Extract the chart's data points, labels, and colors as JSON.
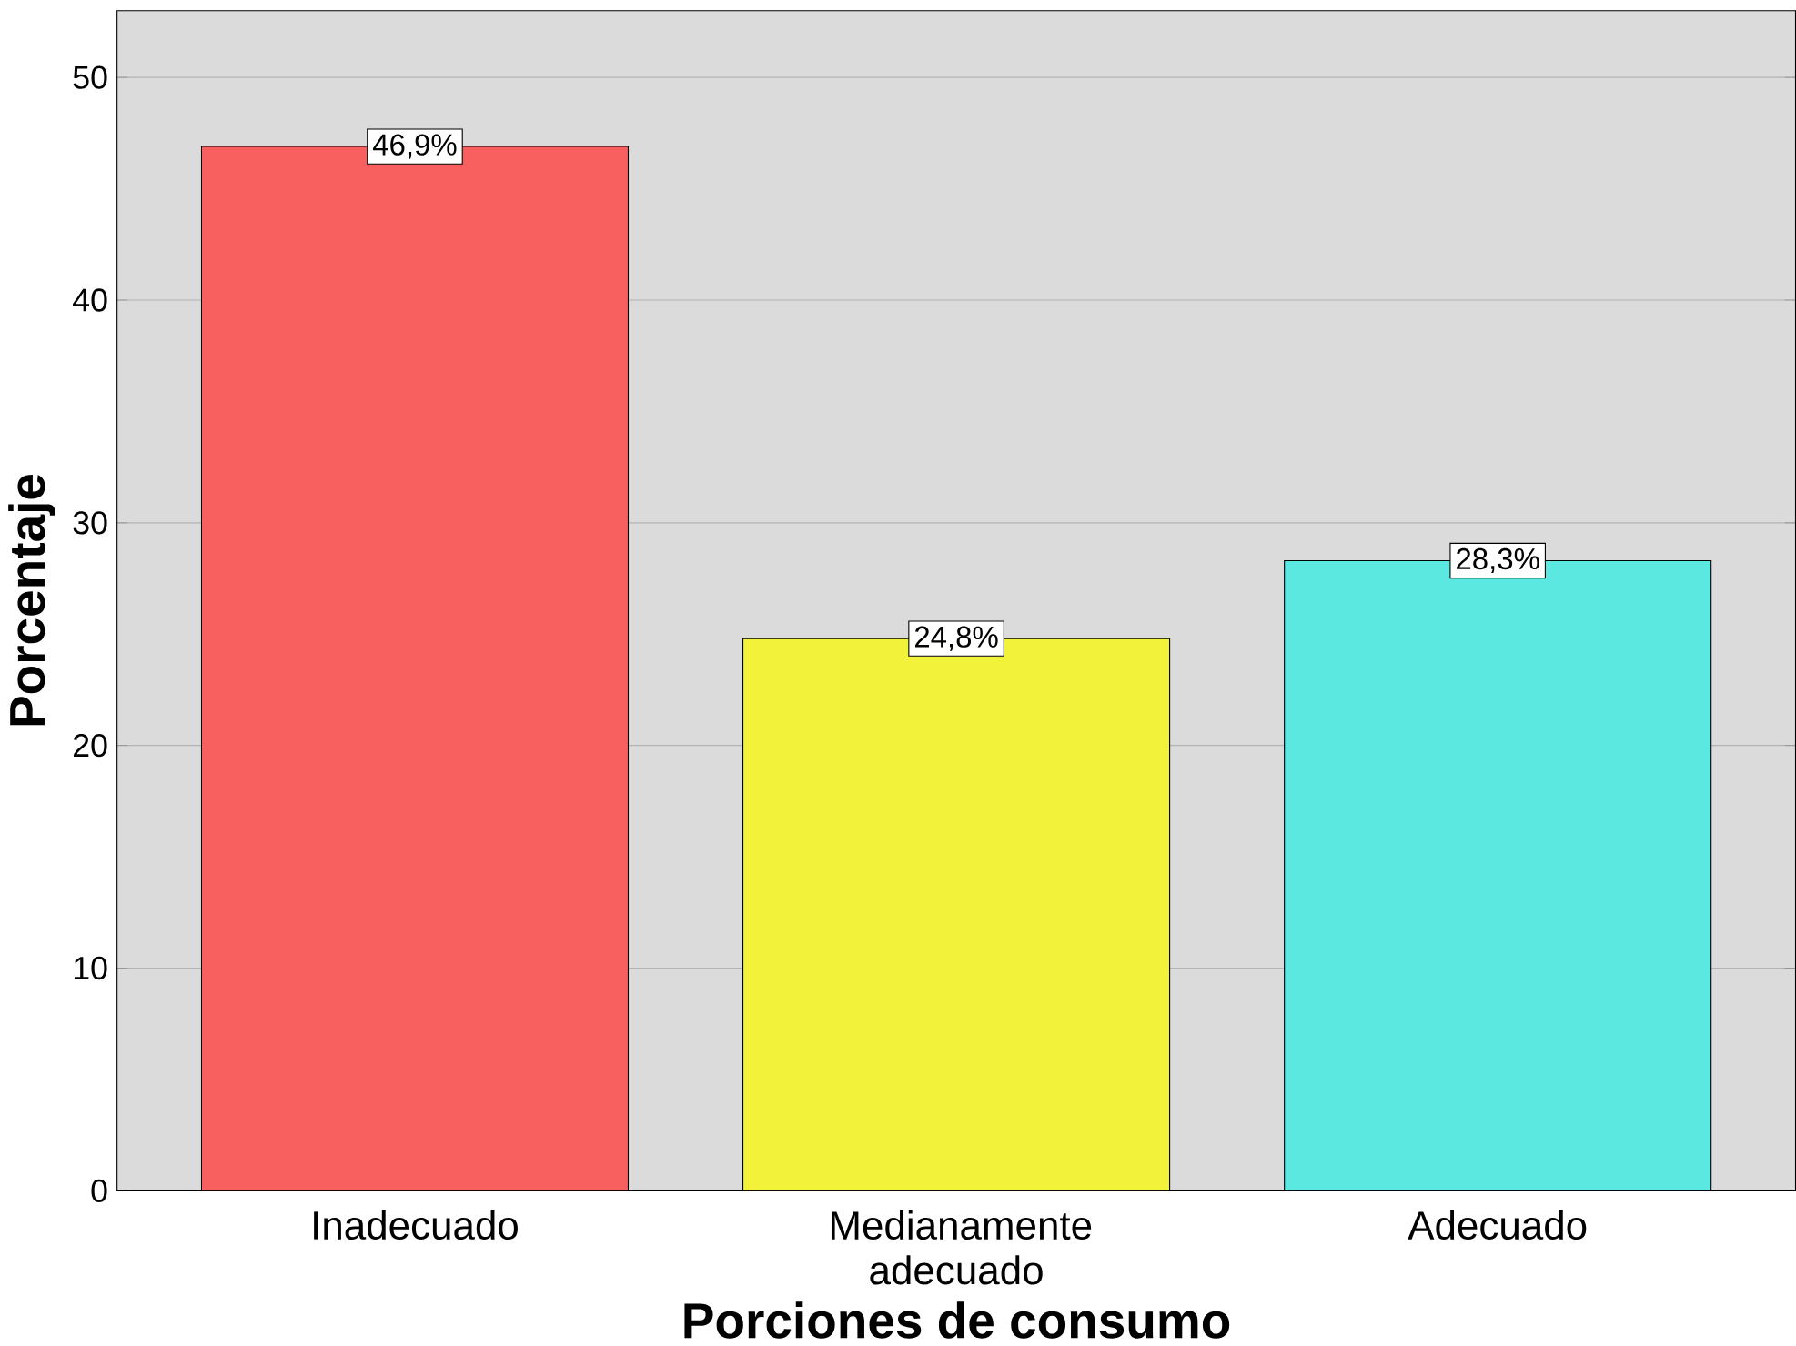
{
  "chart_data": {
    "type": "bar",
    "xlabel": "Porciones de consumo",
    "ylabel": "Porcentaje",
    "categories": [
      "Inadecuado",
      "Medianamente adecuado",
      "Adecuado"
    ],
    "values": [
      46.9,
      24.8,
      28.3
    ],
    "colors": [
      "#f85f5f",
      "#f2f23a",
      "#5ae8e0"
    ],
    "value_labels": [
      "46,9%",
      "24,8%",
      "28,3%"
    ],
    "ylim": [
      0,
      53
    ],
    "yticks": [
      0,
      10,
      20,
      30,
      40,
      50
    ],
    "grid": "y"
  }
}
